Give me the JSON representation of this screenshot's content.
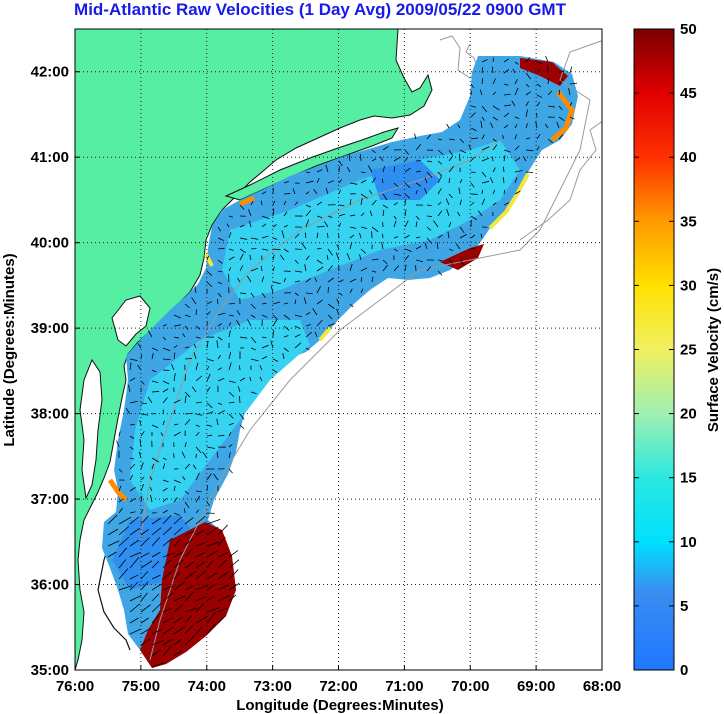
{
  "title": "Mid-Atlantic Raw Velocities (1 Day Avg) 2009/05/22 0900 GMT",
  "map": {
    "xlabel": "Longitude (Degrees:Minutes)",
    "ylabel": "Latitude (Degrees:Minutes)",
    "lon_ticks": [
      "76:00",
      "75:00",
      "74:00",
      "73:00",
      "72:00",
      "71:00",
      "70:00",
      "69:00",
      "68:00"
    ],
    "lat_ticks": [
      "42:00",
      "41:00",
      "40:00",
      "39:00",
      "38:00",
      "37:00",
      "36:00",
      "35:00"
    ],
    "lon_range": [
      -76,
      -68
    ],
    "lat_range": [
      35,
      42.5
    ],
    "colors": {
      "land": "#55eea2",
      "coast": "#111111",
      "contour": "#9a9a9a",
      "grid": "#222222"
    }
  },
  "colorbar": {
    "label": "Surface Velocity (cm/s)",
    "ticks": [
      "0",
      "5",
      "10",
      "15",
      "20",
      "25",
      "30",
      "35",
      "40",
      "45",
      "50"
    ],
    "range": [
      0,
      50
    ]
  }
}
